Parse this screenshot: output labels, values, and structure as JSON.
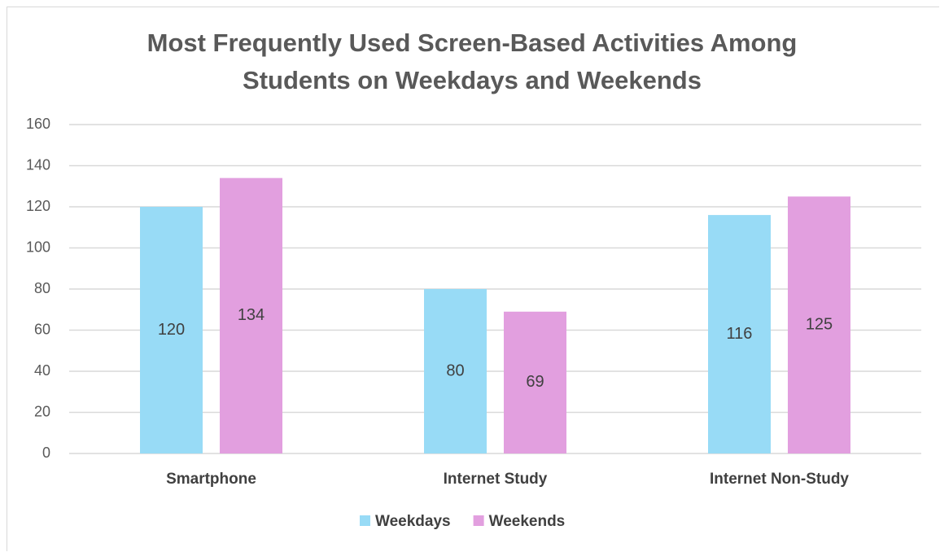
{
  "chart_data": {
    "type": "bar",
    "title": "Most Frequently Used Screen-Based Activities Among Students on Weekdays and Weekends",
    "categories": [
      "Smartphone",
      "Internet Study",
      "Internet Non-Study"
    ],
    "series": [
      {
        "name": "Weekdays",
        "color": "#98dbf6",
        "values": [
          120,
          80,
          116
        ]
      },
      {
        "name": "Weekends",
        "color": "#e29fdf",
        "values": [
          134,
          69,
          125
        ]
      }
    ],
    "ylim": [
      0,
      160
    ],
    "yticks": [
      0,
      20,
      40,
      60,
      80,
      100,
      120,
      140,
      160
    ],
    "grid": true,
    "legend": "bottom"
  }
}
